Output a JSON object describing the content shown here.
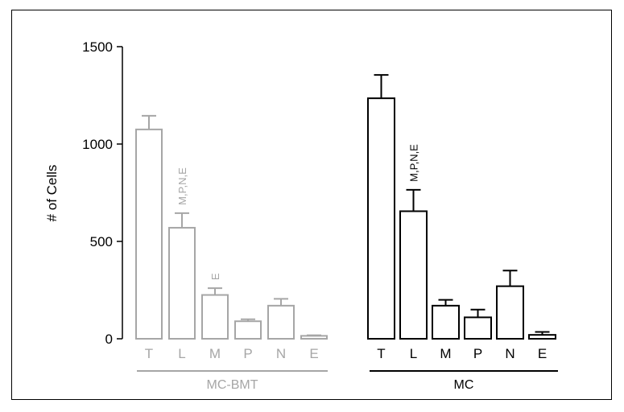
{
  "chart_data": {
    "type": "bar",
    "ylabel": "# of Cells",
    "ylim": [
      0,
      1500
    ],
    "yticks": [
      0,
      500,
      1000,
      1500
    ],
    "grid": false,
    "groups": [
      {
        "name": "MC-BMT",
        "color": "#a6a6a6",
        "categories": [
          "T",
          "L",
          "M",
          "P",
          "N",
          "E"
        ],
        "values": [
          1075,
          570,
          225,
          90,
          170,
          15
        ],
        "errors": [
          70,
          75,
          35,
          10,
          35,
          3
        ],
        "annotations": [
          {
            "category": "L",
            "text": "M,P,N,E"
          },
          {
            "category": "M",
            "text": "E"
          }
        ]
      },
      {
        "name": "MC",
        "color": "#000000",
        "categories": [
          "T",
          "L",
          "M",
          "P",
          "N",
          "E"
        ],
        "values": [
          1235,
          655,
          170,
          110,
          270,
          20
        ],
        "errors": [
          120,
          110,
          30,
          40,
          80,
          15
        ],
        "annotations": [
          {
            "category": "L",
            "text": "M,P,N,E"
          }
        ]
      }
    ]
  }
}
